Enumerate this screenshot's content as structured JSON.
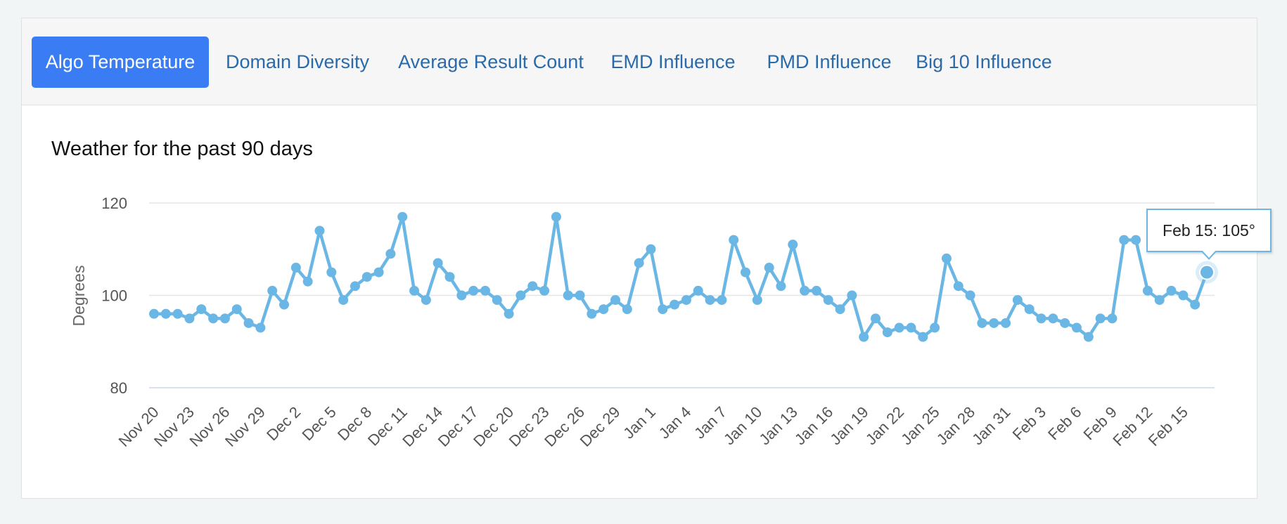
{
  "tabs": [
    {
      "label": "Algo Temperature",
      "active": true
    },
    {
      "label": "Domain Diversity",
      "active": false
    },
    {
      "label": "Average Result Count",
      "active": false
    },
    {
      "label": "EMD Influence",
      "active": false
    },
    {
      "label": "PMD Influence",
      "active": false
    },
    {
      "label": "Big 10 Influence",
      "active": false
    }
  ],
  "tooltip": "Feb 15: 105°",
  "colors": {
    "accent": "#3a7cf3",
    "line": "#6ab7e5",
    "tab_text": "#2a6aab"
  },
  "chart_data": {
    "type": "line",
    "title": "Weather for the past 90 days",
    "xlabel": "",
    "ylabel": "Degrees",
    "ylim": [
      80,
      120
    ],
    "yticks": [
      80,
      100,
      120
    ],
    "grid": true,
    "xtick_labels": [
      "Nov 20",
      "Nov 23",
      "Nov 26",
      "Nov 29",
      "Dec 2",
      "Dec 5",
      "Dec 8",
      "Dec 11",
      "Dec 14",
      "Dec 17",
      "Dec 20",
      "Dec 23",
      "Dec 26",
      "Dec 29",
      "Jan 1",
      "Jan 4",
      "Jan 7",
      "Jan 10",
      "Jan 13",
      "Jan 16",
      "Jan 19",
      "Jan 22",
      "Jan 25",
      "Jan 28",
      "Jan 31",
      "Feb 3",
      "Feb 6",
      "Feb 9",
      "Feb 12",
      "Feb 15"
    ],
    "highlight": {
      "label": "Feb 15",
      "value": 105
    },
    "series": [
      {
        "values": [
          96,
          96,
          96,
          95,
          97,
          95,
          95,
          97,
          94,
          93,
          101,
          98,
          106,
          103,
          114,
          105,
          99,
          102,
          104,
          105,
          109,
          117,
          101,
          99,
          107,
          104,
          100,
          101,
          101,
          99,
          96,
          100,
          102,
          101,
          117,
          100,
          100,
          96,
          97,
          99,
          97,
          107,
          110,
          97,
          98,
          99,
          101,
          99,
          99,
          112,
          105,
          99,
          106,
          102,
          111,
          101,
          101,
          99,
          97,
          100,
          91,
          95,
          92,
          93,
          93,
          91,
          93,
          108,
          102,
          100,
          94,
          94,
          94,
          99,
          97,
          95,
          95,
          94,
          93,
          91,
          95,
          95,
          112,
          112,
          101,
          99,
          101,
          100,
          98,
          105
        ]
      }
    ]
  }
}
